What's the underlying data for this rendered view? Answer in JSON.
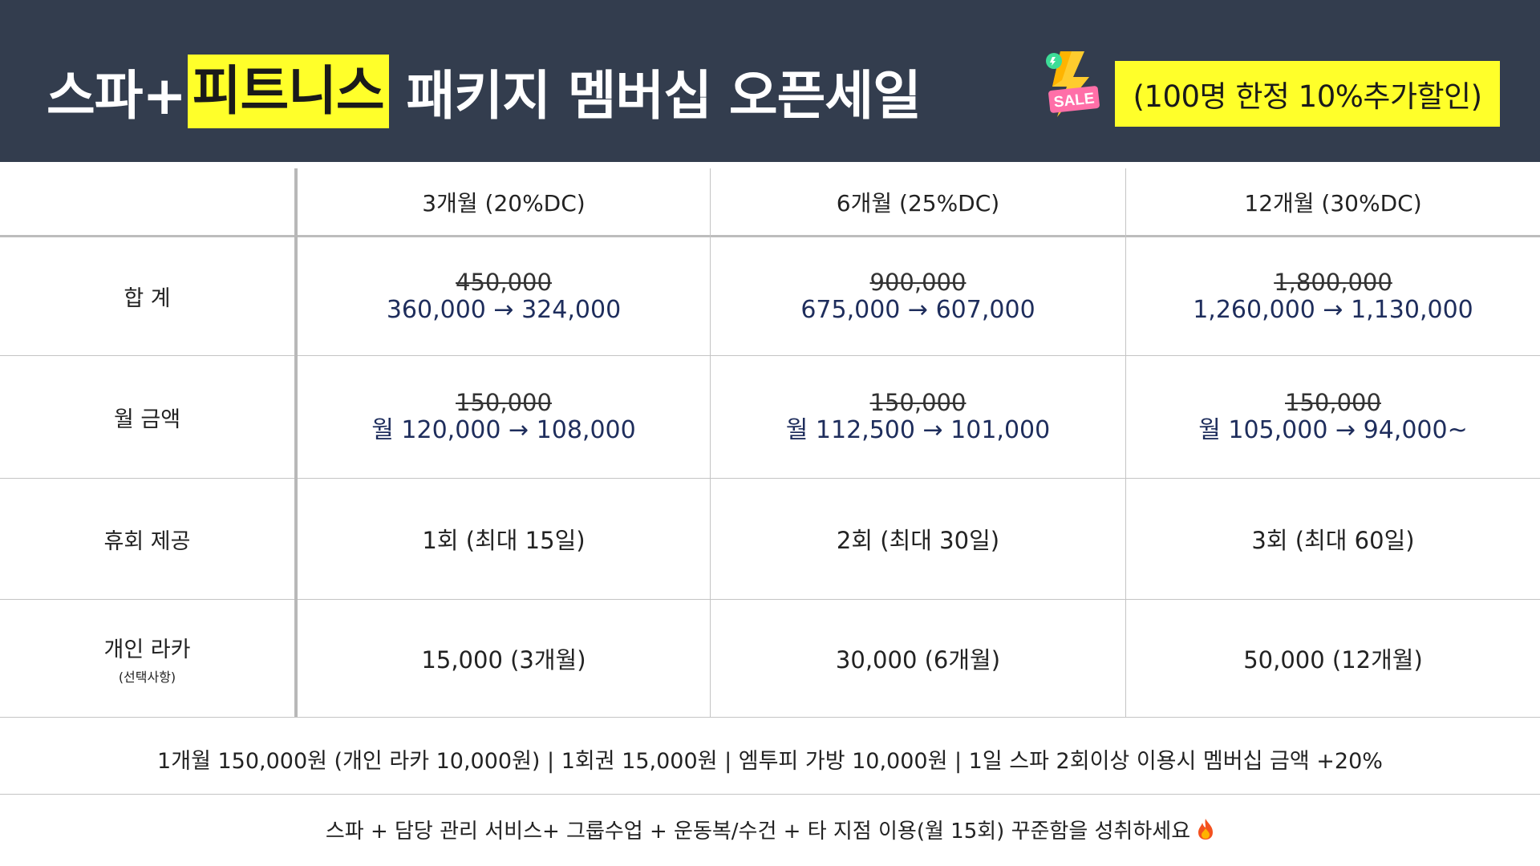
{
  "header": {
    "title_part1": "스파+",
    "title_highlight": "피트니스",
    "title_part2": "패키지 멤버십 오픈세일",
    "sale_badge": "SALE",
    "promo": "(100명 한정 10%추가할인)",
    "colors": {
      "background": "#333d4e",
      "highlight": "#ffff2a"
    }
  },
  "table": {
    "columns": [
      "3개월 (20%DC)",
      "6개월 (25%DC)",
      "12개월 (30%DC)"
    ],
    "rows": [
      {
        "label": "합 계",
        "cells": [
          {
            "original": "450,000",
            "price": "360,000 → 324,000"
          },
          {
            "original": "900,000",
            "price": "675,000 → 607,000"
          },
          {
            "original": "1,800,000",
            "price": "1,260,000 → 1,130,000"
          }
        ]
      },
      {
        "label": "월 금액",
        "cells": [
          {
            "original": "150,000",
            "price": "월 120,000 → 108,000"
          },
          {
            "original": "150,000",
            "price": "월 112,500 → 101,000"
          },
          {
            "original": "150,000",
            "price": "월 105,000 → 94,000~"
          }
        ]
      },
      {
        "label": "휴회 제공",
        "cells": [
          "1회 (최대 15일)",
          "2회 (최대 30일)",
          "3회 (최대 60일)"
        ]
      },
      {
        "label": "개인 라카",
        "sublabel": "(선택사항)",
        "cells": [
          "15,000 (3개월)",
          "30,000 (6개월)",
          "50,000 (12개월)"
        ]
      }
    ],
    "price_color": "#1e2d5c"
  },
  "footer": {
    "line1": "1개월 150,000원 (개인 라카 10,000원)  |  1회권 15,000원  |  엠투피 가방 10,000원 | 1일 스파 2회이상 이용시 멤버십 금액 +20%",
    "line2": "스파 + 담당 관리 서비스+ 그룹수업 + 운동복/수건 + 타 지점 이용(월 15회) 꾸준함을 성취하세요",
    "fire_icon": "fire-icon"
  }
}
